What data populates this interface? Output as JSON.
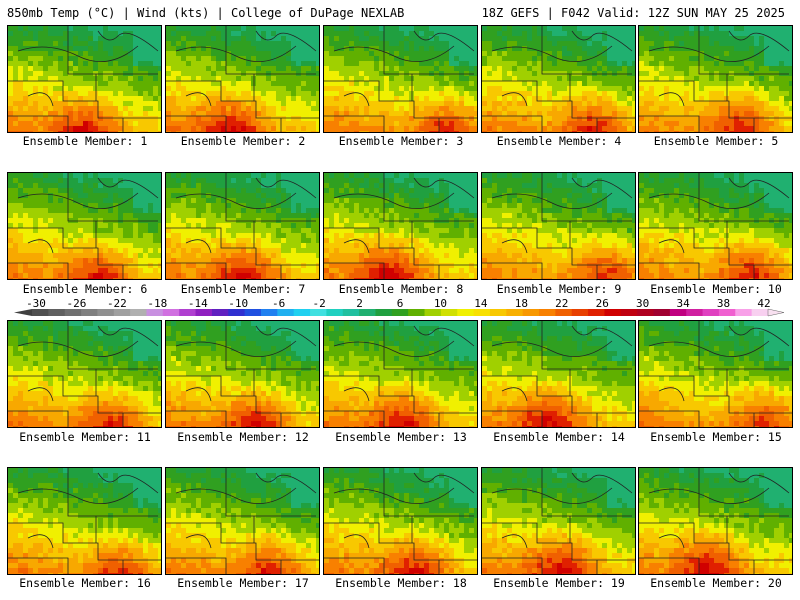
{
  "header": {
    "left": "850mb Temp (°C) | Wind (kts) | College of DuPage NEXLAB",
    "right": "18Z GEFS | F042 Valid: 12Z SUN MAY 25 2025"
  },
  "panels": [
    {
      "label": "Ensemble Member: 1"
    },
    {
      "label": "Ensemble Member: 2"
    },
    {
      "label": "Ensemble Member: 3"
    },
    {
      "label": "Ensemble Member: 4"
    },
    {
      "label": "Ensemble Member: 5"
    },
    {
      "label": "Ensemble Member: 6"
    },
    {
      "label": "Ensemble Member: 7"
    },
    {
      "label": "Ensemble Member: 8"
    },
    {
      "label": "Ensemble Member: 9"
    },
    {
      "label": "Ensemble Member: 10"
    },
    {
      "label": "Ensemble Member: 11"
    },
    {
      "label": "Ensemble Member: 12"
    },
    {
      "label": "Ensemble Member: 13"
    },
    {
      "label": "Ensemble Member: 14"
    },
    {
      "label": "Ensemble Member: 15"
    },
    {
      "label": "Ensemble Member: 16"
    },
    {
      "label": "Ensemble Member: 17"
    },
    {
      "label": "Ensemble Member: 18"
    },
    {
      "label": "Ensemble Member: 19"
    },
    {
      "label": "Ensemble Member: 20"
    }
  ],
  "colorbar": {
    "ticks": [
      "-30",
      "-26",
      "-22",
      "-18",
      "-14",
      "-10",
      "-6",
      "-2",
      "2",
      "6",
      "10",
      "14",
      "18",
      "22",
      "26",
      "30",
      "34",
      "38",
      "42"
    ],
    "colors": [
      "#505050",
      "#606060",
      "#707070",
      "#808080",
      "#909090",
      "#a0a0a0",
      "#b0b0b0",
      "#c890e0",
      "#d070e0",
      "#b040d0",
      "#9020c0",
      "#6020c0",
      "#3030d0",
      "#2050e0",
      "#2080f0",
      "#20b0f0",
      "#20d0f0",
      "#40e0e0",
      "#20d0c0",
      "#20c0a0",
      "#20b070",
      "#20a040",
      "#30a020",
      "#60b000",
      "#a0d000",
      "#d0e000",
      "#f0f000",
      "#f8e000",
      "#f8c800",
      "#f8b000",
      "#f89800",
      "#f88000",
      "#f06000",
      "#e84000",
      "#e02000",
      "#d00000",
      "#c00010",
      "#b00020",
      "#a00030",
      "#c00080",
      "#d020a0",
      "#e040c0",
      "#f060d0",
      "#f8a0e8",
      "#f8d0f0"
    ]
  }
}
